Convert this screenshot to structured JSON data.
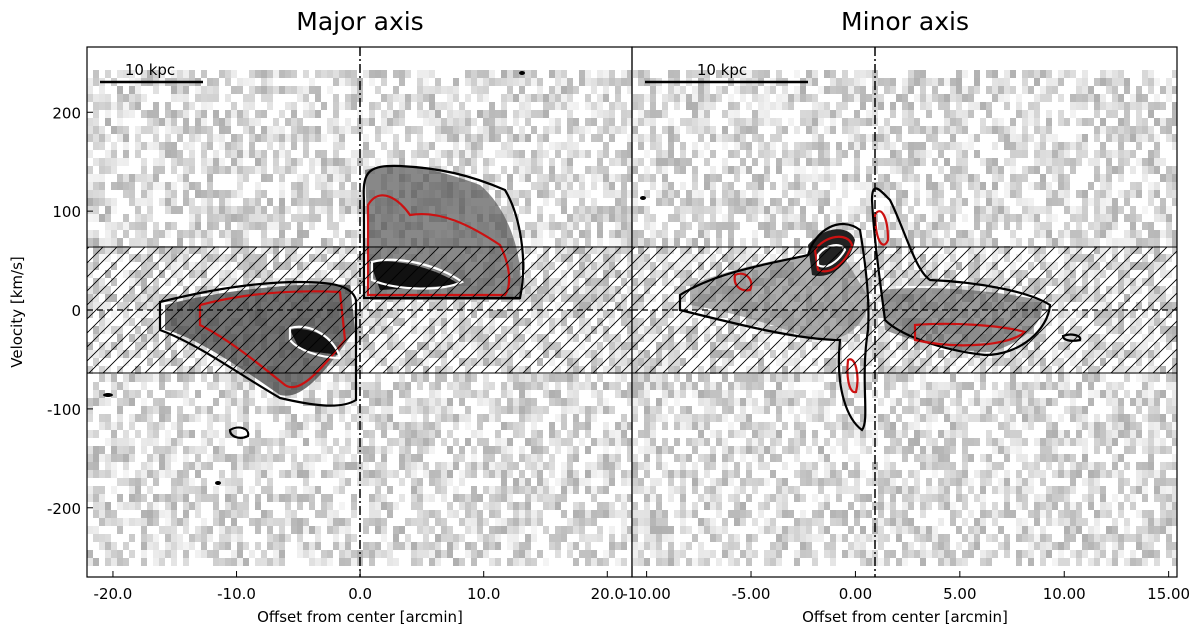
{
  "chart_data": [
    {
      "type": "heatmap",
      "title": "Major axis",
      "xlabel": "Offset from center [arcmin]",
      "ylabel": "Velocity [km/s]",
      "xlim": [
        -22.1,
        22.0
      ],
      "ylim": [
        -270,
        266
      ],
      "xticks": [
        -20,
        -10,
        0,
        10,
        20
      ],
      "xtick_labels": [
        "-20.0",
        "-10.0",
        "0.0",
        "10.0",
        "20.0"
      ],
      "yticks": [
        200,
        100,
        0,
        -100,
        -200
      ],
      "ytick_labels": [
        "200",
        "100",
        "0",
        "-100",
        "-200"
      ],
      "scale_bar": {
        "label": "10 kpc"
      },
      "hatched_band": [
        -64,
        64
      ],
      "center_line_x": 0,
      "center_line_y": 0,
      "contour_colors": [
        "#000000",
        "#cc1111",
        "#ffffff"
      ]
    },
    {
      "type": "heatmap",
      "title": "Minor axis",
      "xlabel": "Offset from center [arcmin]",
      "ylabel": "",
      "xlim": [
        -10.7,
        15.4
      ],
      "ylim": [
        -270,
        266
      ],
      "xticks": [
        -10,
        -5,
        0,
        5,
        10,
        15
      ],
      "xtick_labels": [
        "-10.00",
        "-5.00",
        "0.00",
        "5.00",
        "10.00",
        "15.00"
      ],
      "yticks": [],
      "ytick_labels": [],
      "scale_bar": {
        "label": "10 kpc"
      },
      "hatched_band": [
        -64,
        64
      ],
      "center_line_x": 0,
      "center_line_y": 0,
      "contour_colors": [
        "#000000",
        "#cc1111",
        "#ffffff"
      ]
    }
  ]
}
